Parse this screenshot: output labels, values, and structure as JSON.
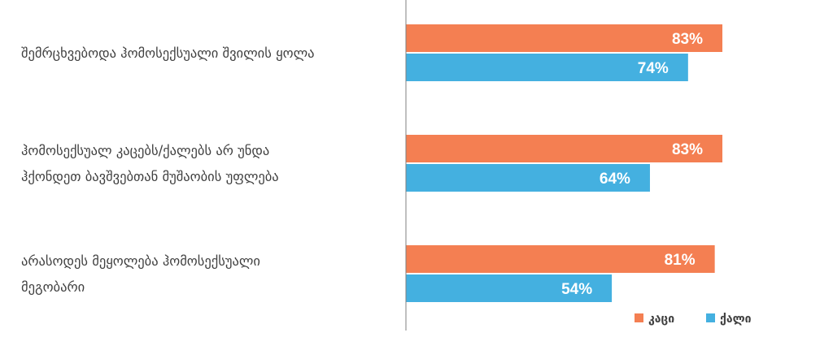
{
  "chart_data": {
    "type": "bar",
    "orientation": "horizontal",
    "categories": [
      [
        "შემრცხვებოდა ჰომოსექსუალი შვილის ყოლა"
      ],
      [
        "ჰომოსექსუალ კაცებს/ქალებს არ უნდა",
        "ჰქონდეთ ბავშვებთან მუშაობის უფლება"
      ],
      [
        "არასოდეს მეყოლება ჰომოსექსუალი",
        "მეგობარი"
      ]
    ],
    "series": [
      {
        "name": "კაცი",
        "color": "#f47f52",
        "values": [
          83,
          83,
          81
        ],
        "labels": [
          "83%",
          "83%",
          "81%"
        ]
      },
      {
        "name": "ქალი",
        "color": "#44b0e0",
        "values": [
          74,
          64,
          54
        ],
        "labels": [
          "74%",
          "64%",
          "54%"
        ]
      }
    ],
    "xlim": [
      0,
      100
    ],
    "grid": false,
    "legend_position": "bottom-right"
  },
  "colors": {
    "axis": "#7f7f7f",
    "label_text": "#404040"
  }
}
